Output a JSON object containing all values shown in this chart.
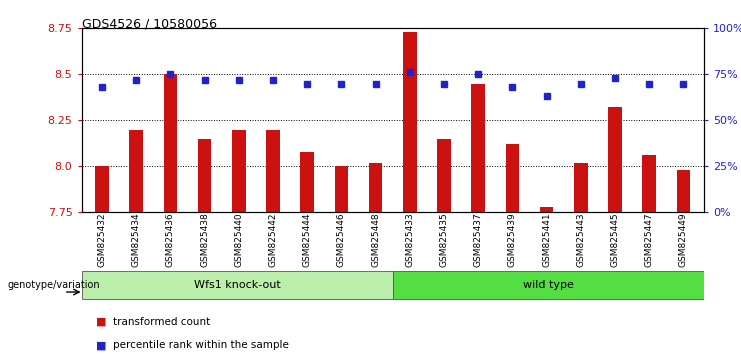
{
  "title": "GDS4526 / 10580056",
  "samples": [
    "GSM825432",
    "GSM825434",
    "GSM825436",
    "GSM825438",
    "GSM825440",
    "GSM825442",
    "GSM825444",
    "GSM825446",
    "GSM825448",
    "GSM825433",
    "GSM825435",
    "GSM825437",
    "GSM825439",
    "GSM825441",
    "GSM825443",
    "GSM825445",
    "GSM825447",
    "GSM825449"
  ],
  "red_values": [
    8.0,
    8.2,
    8.5,
    8.15,
    8.2,
    8.2,
    8.08,
    8.0,
    8.02,
    8.73,
    8.15,
    8.45,
    8.12,
    7.78,
    8.02,
    8.32,
    8.06,
    7.98
  ],
  "blue_values": [
    68,
    72,
    75,
    72,
    72,
    72,
    70,
    70,
    70,
    76,
    70,
    75,
    68,
    63,
    70,
    73,
    70,
    70
  ],
  "ylim_left": [
    7.75,
    8.75
  ],
  "ylim_right": [
    0,
    100
  ],
  "yticks_left": [
    7.75,
    8.0,
    8.25,
    8.5,
    8.75
  ],
  "yticks_right": [
    0,
    25,
    50,
    75,
    100
  ],
  "ytick_labels_right": [
    "0%",
    "25%",
    "50%",
    "75%",
    "100%"
  ],
  "group1_label": "Wfs1 knock-out",
  "group2_label": "wild type",
  "group1_count": 9,
  "group2_count": 9,
  "genotype_label": "genotype/variation",
  "legend_red": "transformed count",
  "legend_blue": "percentile rank within the sample",
  "bar_color": "#cc1111",
  "dot_color": "#2222cc",
  "group1_bg": "#bbeeaa",
  "group2_bg": "#55dd44",
  "plot_bg": "#ffffff",
  "axis_bg": "#ffffff",
  "bar_width": 0.4
}
